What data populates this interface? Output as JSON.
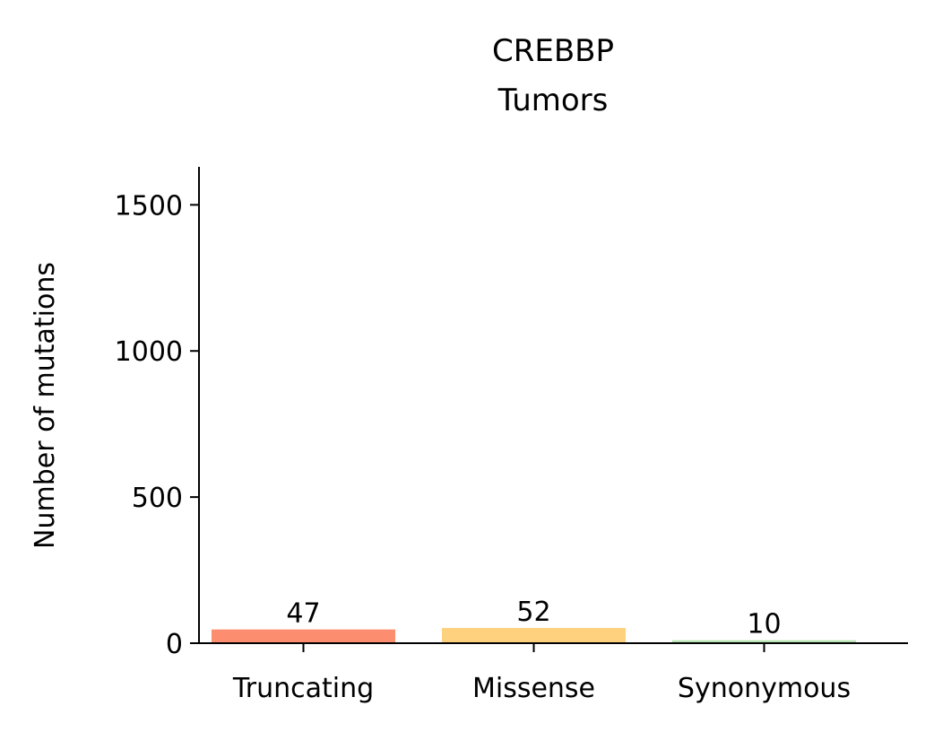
{
  "chart_data": {
    "type": "bar",
    "title": [
      "CREBBP",
      "Tumors"
    ],
    "xlabel": "",
    "ylabel": "Number of mutations",
    "categories": [
      "Truncating",
      "Missense",
      "Synonymous"
    ],
    "values": [
      47,
      52,
      10
    ],
    "data_labels": [
      "47",
      "52",
      "10"
    ],
    "colors": [
      "#fc8d6f",
      "#fdd17d",
      "#b5e3b2"
    ],
    "ylim": [
      0,
      1630
    ],
    "yticks": [
      0,
      500,
      1000,
      1500
    ],
    "ytick_labels": [
      "0",
      "500",
      "1000",
      "1500"
    ],
    "grid": false,
    "legend": "none"
  }
}
